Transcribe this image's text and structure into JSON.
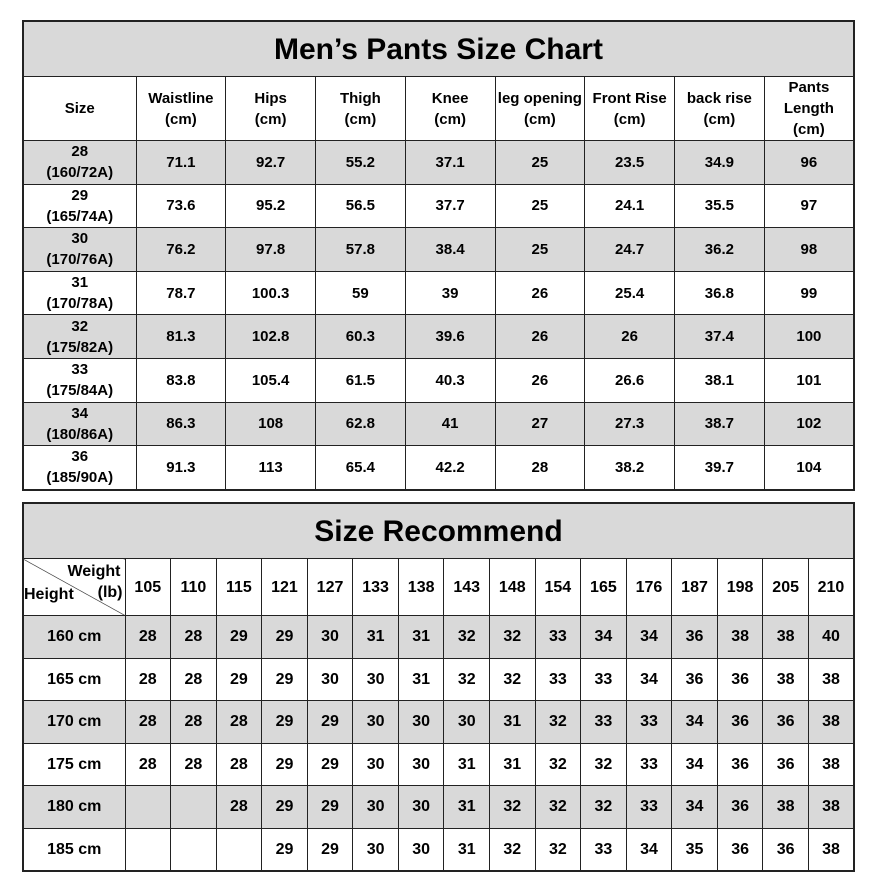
{
  "size_chart": {
    "title": "Men’s Pants Size Chart",
    "headers": [
      [
        "Size",
        ""
      ],
      [
        "Waistline",
        "(cm)"
      ],
      [
        "Hips",
        "(cm)"
      ],
      [
        "Thigh",
        "(cm)"
      ],
      [
        "Knee",
        "(cm)"
      ],
      [
        "leg opening",
        "(cm)"
      ],
      [
        "Front Rise",
        "(cm)"
      ],
      [
        "back rise",
        "(cm)"
      ],
      [
        "Pants Length",
        "(cm)"
      ]
    ],
    "rows": [
      {
        "size": "28",
        "spec": "(160/72A)",
        "values": [
          "71.1",
          "92.7",
          "55.2",
          "37.1",
          "25",
          "23.5",
          "34.9",
          "96"
        ]
      },
      {
        "size": "29",
        "spec": "(165/74A)",
        "values": [
          "73.6",
          "95.2",
          "56.5",
          "37.7",
          "25",
          "24.1",
          "35.5",
          "97"
        ]
      },
      {
        "size": "30",
        "spec": "(170/76A)",
        "values": [
          "76.2",
          "97.8",
          "57.8",
          "38.4",
          "25",
          "24.7",
          "36.2",
          "98"
        ]
      },
      {
        "size": "31",
        "spec": "(170/78A)",
        "values": [
          "78.7",
          "100.3",
          "59",
          "39",
          "26",
          "25.4",
          "36.8",
          "99"
        ]
      },
      {
        "size": "32",
        "spec": "(175/82A)",
        "values": [
          "81.3",
          "102.8",
          "60.3",
          "39.6",
          "26",
          "26",
          "37.4",
          "100"
        ]
      },
      {
        "size": "33",
        "spec": "(175/84A)",
        "values": [
          "83.8",
          "105.4",
          "61.5",
          "40.3",
          "26",
          "26.6",
          "38.1",
          "101"
        ]
      },
      {
        "size": "34",
        "spec": "(180/86A)",
        "values": [
          "86.3",
          "108",
          "62.8",
          "41",
          "27",
          "27.3",
          "38.7",
          "102"
        ]
      },
      {
        "size": "36",
        "spec": "(185/90A)",
        "values": [
          "91.3",
          "113",
          "65.4",
          "42.2",
          "28",
          "38.2",
          "39.7",
          "104"
        ]
      }
    ]
  },
  "size_recommend": {
    "title": "Size Recommend",
    "corner": {
      "weight": "Weight",
      "unit": "(lb)",
      "height": "Height"
    },
    "weights": [
      "105",
      "110",
      "115",
      "121",
      "127",
      "133",
      "138",
      "143",
      "148",
      "154",
      "165",
      "176",
      "187",
      "198",
      "205",
      "210"
    ],
    "rows": [
      {
        "height": "160 cm",
        "sizes": [
          "28",
          "28",
          "29",
          "29",
          "30",
          "31",
          "31",
          "32",
          "32",
          "33",
          "34",
          "34",
          "36",
          "38",
          "38",
          "40"
        ]
      },
      {
        "height": "165 cm",
        "sizes": [
          "28",
          "28",
          "29",
          "29",
          "30",
          "30",
          "31",
          "32",
          "32",
          "33",
          "33",
          "34",
          "36",
          "36",
          "38",
          "38"
        ]
      },
      {
        "height": "170 cm",
        "sizes": [
          "28",
          "28",
          "28",
          "29",
          "29",
          "30",
          "30",
          "30",
          "31",
          "32",
          "33",
          "33",
          "34",
          "36",
          "36",
          "38"
        ]
      },
      {
        "height": "175 cm",
        "sizes": [
          "28",
          "28",
          "28",
          "29",
          "29",
          "30",
          "30",
          "31",
          "31",
          "32",
          "32",
          "33",
          "34",
          "36",
          "36",
          "38"
        ]
      },
      {
        "height": "180 cm",
        "sizes": [
          "",
          "",
          "28",
          "29",
          "29",
          "30",
          "30",
          "31",
          "32",
          "32",
          "32",
          "33",
          "34",
          "36",
          "38",
          "38"
        ]
      },
      {
        "height": "185 cm",
        "sizes": [
          "",
          "",
          "",
          "29",
          "29",
          "30",
          "30",
          "31",
          "32",
          "32",
          "33",
          "34",
          "35",
          "36",
          "36",
          "38"
        ]
      }
    ]
  },
  "colors": {
    "shaded_row": "#d9d9d9",
    "border": "#222222"
  }
}
